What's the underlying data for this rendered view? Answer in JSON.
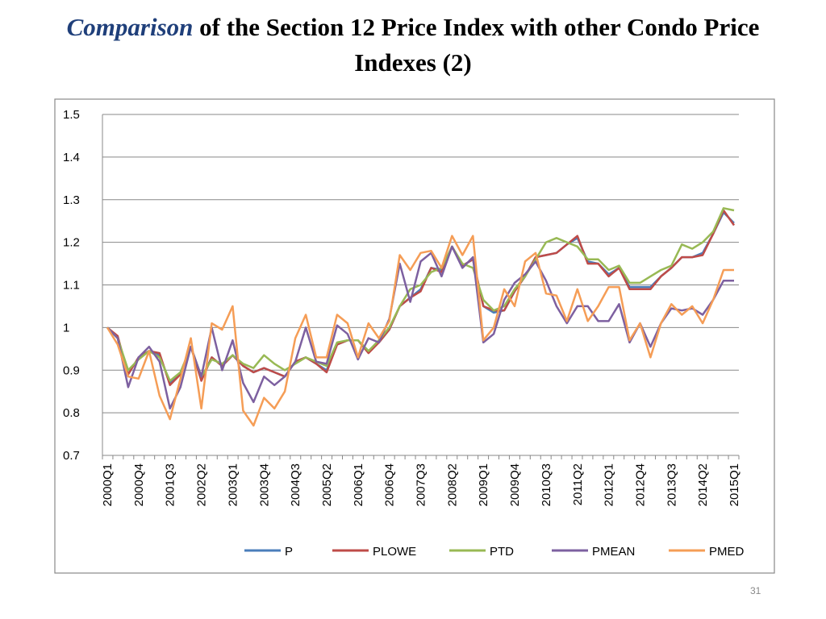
{
  "title_emphasis": "Comparison",
  "title_rest": "of the Section 12 Price Index with other Condo Price Indexes (2)",
  "page_number": "31",
  "chart_data": {
    "type": "line",
    "categories": [
      "2000Q1",
      null,
      null,
      "2000Q4",
      null,
      null,
      "2001Q3",
      null,
      null,
      "2002Q2",
      null,
      null,
      "2003Q1",
      null,
      null,
      "2003Q4",
      null,
      null,
      "2004Q3",
      null,
      null,
      "2005Q2",
      null,
      null,
      "2006Q1",
      null,
      null,
      "2006Q4",
      null,
      null,
      "2007Q3",
      null,
      null,
      "2008Q2",
      null,
      null,
      "2009Q1",
      null,
      null,
      "2009Q4",
      null,
      null,
      "2010Q3",
      null,
      null,
      "2011Q2",
      null,
      null,
      "2012Q1",
      null,
      null,
      "2012Q4",
      null,
      null,
      "2013Q3",
      null,
      null,
      "2014Q2",
      null,
      null,
      "2015Q1"
    ],
    "ylim": [
      0.7,
      1.5
    ],
    "yticks": [
      0.7,
      0.8,
      0.9,
      1,
      1.1,
      1.2,
      1.3,
      1.4,
      1.5
    ],
    "grid": true,
    "legend": "bottom",
    "series": [
      {
        "name": "P",
        "color": "#4a7ebb",
        "values": [
          1.0,
          0.975,
          0.89,
          0.93,
          0.945,
          0.935,
          0.87,
          0.89,
          0.955,
          0.88,
          0.93,
          0.91,
          0.935,
          0.91,
          0.895,
          0.905,
          0.895,
          0.885,
          0.92,
          0.93,
          0.915,
          0.9,
          0.96,
          0.97,
          0.97,
          0.945,
          0.965,
          0.995,
          1.05,
          1.07,
          1.09,
          1.14,
          1.135,
          1.19,
          1.145,
          1.16,
          1.05,
          1.035,
          1.04,
          1.085,
          1.12,
          1.165,
          1.17,
          1.175,
          1.195,
          1.21,
          1.155,
          1.15,
          1.125,
          1.14,
          1.095,
          1.095,
          1.095,
          1.12,
          1.14,
          1.165,
          1.165,
          1.175,
          1.22,
          1.27,
          1.245
        ]
      },
      {
        "name": "PLOWE",
        "color": "#be4b48",
        "values": [
          1.0,
          0.98,
          0.89,
          0.93,
          0.945,
          0.94,
          0.865,
          0.89,
          0.955,
          0.875,
          0.93,
          0.91,
          0.935,
          0.91,
          0.895,
          0.905,
          0.895,
          0.885,
          0.92,
          0.93,
          0.915,
          0.895,
          0.96,
          0.97,
          0.97,
          0.94,
          0.965,
          0.995,
          1.05,
          1.07,
          1.085,
          1.14,
          1.13,
          1.19,
          1.145,
          1.16,
          1.05,
          1.04,
          1.04,
          1.085,
          1.12,
          1.165,
          1.17,
          1.175,
          1.195,
          1.215,
          1.15,
          1.15,
          1.12,
          1.14,
          1.09,
          1.09,
          1.09,
          1.12,
          1.14,
          1.165,
          1.165,
          1.17,
          1.22,
          1.275,
          1.24
        ]
      },
      {
        "name": "PTD",
        "color": "#98b954",
        "values": [
          1.0,
          0.975,
          0.9,
          0.925,
          0.945,
          0.93,
          0.875,
          0.895,
          0.955,
          0.885,
          0.925,
          0.915,
          0.935,
          0.915,
          0.905,
          0.935,
          0.915,
          0.9,
          0.915,
          0.93,
          0.92,
          0.91,
          0.965,
          0.97,
          0.97,
          0.945,
          0.97,
          1.0,
          1.05,
          1.09,
          1.1,
          1.13,
          1.14,
          1.19,
          1.15,
          1.14,
          1.065,
          1.04,
          1.05,
          1.09,
          1.12,
          1.16,
          1.2,
          1.21,
          1.2,
          1.19,
          1.16,
          1.16,
          1.135,
          1.145,
          1.105,
          1.105,
          1.12,
          1.135,
          1.145,
          1.195,
          1.185,
          1.2,
          1.225,
          1.28,
          1.275
        ]
      },
      {
        "name": "PMEAN",
        "color": "#7d60a0",
        "values": [
          1.0,
          0.975,
          0.86,
          0.93,
          0.955,
          0.92,
          0.81,
          0.86,
          0.955,
          0.885,
          1.0,
          0.9,
          0.97,
          0.87,
          0.825,
          0.885,
          0.865,
          0.885,
          0.92,
          1.0,
          0.92,
          0.915,
          1.005,
          0.985,
          0.925,
          0.975,
          0.965,
          1.02,
          1.15,
          1.06,
          1.155,
          1.175,
          1.12,
          1.19,
          1.14,
          1.165,
          0.965,
          0.985,
          1.065,
          1.105,
          1.125,
          1.155,
          1.11,
          1.05,
          1.01,
          1.05,
          1.05,
          1.015,
          1.015,
          1.055,
          0.965,
          1.01,
          0.955,
          1.01,
          1.045,
          1.04,
          1.045,
          1.03,
          1.065,
          1.11,
          1.11
        ]
      },
      {
        "name": "PMED",
        "color": "#f59d56",
        "values": [
          1.0,
          0.96,
          0.885,
          0.88,
          0.945,
          0.84,
          0.785,
          0.88,
          0.975,
          0.81,
          1.01,
          0.995,
          1.05,
          0.805,
          0.77,
          0.835,
          0.81,
          0.85,
          0.975,
          1.03,
          0.93,
          0.93,
          1.03,
          1.01,
          0.93,
          1.01,
          0.975,
          1.015,
          1.17,
          1.135,
          1.175,
          1.18,
          1.14,
          1.215,
          1.17,
          1.215,
          0.97,
          1.0,
          1.09,
          1.05,
          1.155,
          1.175,
          1.08,
          1.075,
          1.015,
          1.09,
          1.015,
          1.05,
          1.095,
          1.095,
          0.97,
          1.01,
          0.93,
          1.01,
          1.055,
          1.03,
          1.05,
          1.01,
          1.065,
          1.135,
          1.135
        ]
      }
    ]
  }
}
